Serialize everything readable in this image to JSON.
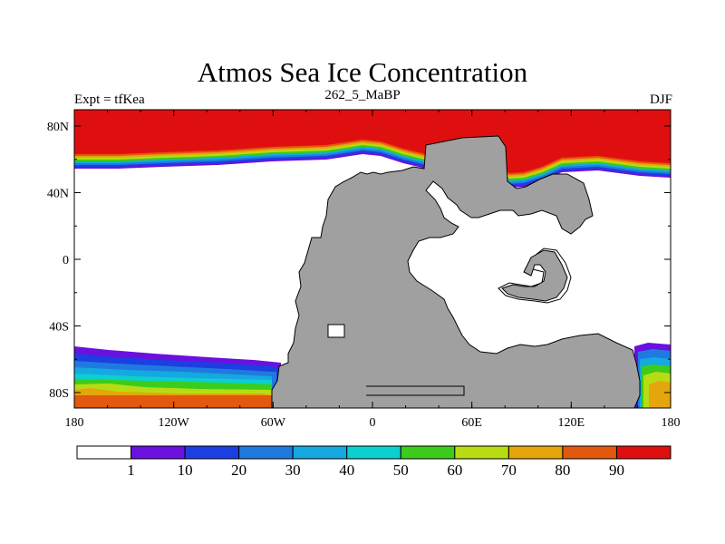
{
  "title": "Atmos Sea Ice Concentration",
  "subtitle_left": "Expt = tfKea",
  "subtitle_center": "262_5_MaBP",
  "subtitle_right": "DJF",
  "lon_ticks": [
    "180",
    "120W",
    "60W",
    "0",
    "60E",
    "120E",
    "180"
  ],
  "lat_ticks": [
    "80N",
    "40N",
    "0",
    "40S",
    "80S"
  ],
  "colorbar": {
    "labels": [
      "1",
      "10",
      "20",
      "30",
      "40",
      "50",
      "60",
      "70",
      "80",
      "90"
    ],
    "colors": [
      "#ffffff",
      "#6a11e0",
      "#1b3fe0",
      "#1f7ae0",
      "#16a8e0",
      "#0ccfcf",
      "#3ccc1c",
      "#b8dc14",
      "#e4a60c",
      "#e2580c",
      "#e00f0f"
    ]
  },
  "land_color": "#a0a0a0"
}
